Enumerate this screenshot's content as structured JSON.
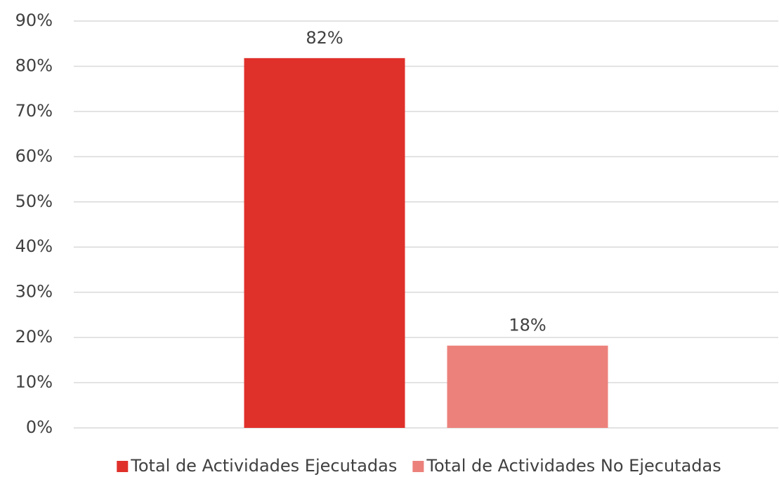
{
  "chart_data": {
    "type": "bar",
    "categories": [
      null
    ],
    "series": [
      {
        "name": "Total de Actividades Ejecutadas",
        "color": "#e0302a",
        "values": [
          81.8
        ],
        "value_labels": [
          "82%"
        ]
      },
      {
        "name": "Total de Actividades No Ejecutadas",
        "color": "#ec817b",
        "values": [
          18.2
        ],
        "value_labels": [
          "18%"
        ]
      }
    ],
    "ylim": [
      0,
      90
    ],
    "yticks": [
      {
        "value": 0,
        "label": "0%"
      },
      {
        "value": 10,
        "label": "10%"
      },
      {
        "value": 20,
        "label": "20%"
      },
      {
        "value": 30,
        "label": "30%"
      },
      {
        "value": 40,
        "label": "40%"
      },
      {
        "value": 50,
        "label": "50%"
      },
      {
        "value": 60,
        "label": "60%"
      },
      {
        "value": 70,
        "label": "70%"
      },
      {
        "value": 80,
        "label": "80%"
      },
      {
        "value": 90,
        "label": "90%"
      }
    ],
    "grid": true,
    "legend": "bottom"
  }
}
